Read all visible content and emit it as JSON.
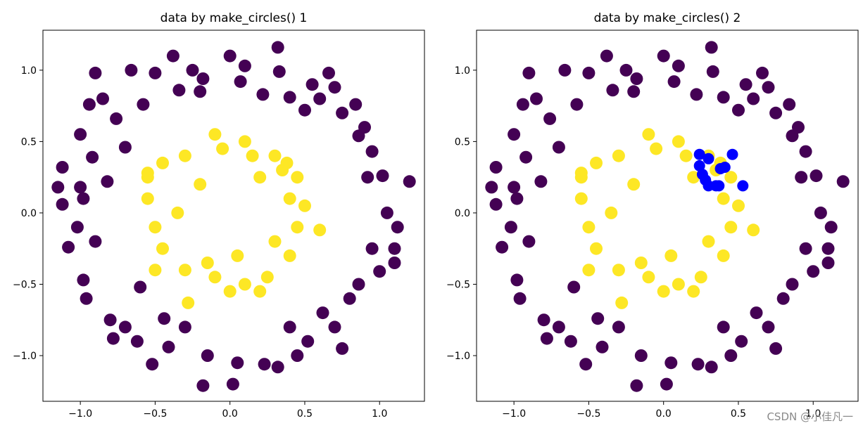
{
  "watermark": "CSDN @小佳凡一",
  "colors": {
    "outer": "#440154",
    "inner": "#fde725",
    "highlight": "#0000ff"
  },
  "chart_data": [
    {
      "type": "scatter",
      "title": "data by make_circles() 1",
      "xlim": [
        -1.25,
        1.3
      ],
      "ylim": [
        -1.32,
        1.28
      ],
      "xticks": [
        -1.0,
        -0.5,
        0.0,
        0.5,
        1.0
      ],
      "xtick_labels": [
        "−1.0",
        "−0.5",
        "0.0",
        "0.5",
        "1.0"
      ],
      "yticks": [
        -1.0,
        -0.5,
        0.0,
        0.5,
        1.0
      ],
      "ytick_labels": [
        "−1.0",
        "−0.5",
        "0.0",
        "0.5",
        "1.0"
      ],
      "grid": false,
      "series": [
        {
          "color": "#440154",
          "marker": "circle",
          "points": [
            [
              0.32,
              1.16
            ],
            [
              0.0,
              1.1
            ],
            [
              -0.38,
              1.1
            ],
            [
              0.33,
              0.99
            ],
            [
              0.66,
              0.98
            ],
            [
              -0.66,
              1.0
            ],
            [
              -0.9,
              0.98
            ],
            [
              -0.94,
              0.76
            ],
            [
              -1.0,
              0.55
            ],
            [
              -1.12,
              0.32
            ],
            [
              -1.15,
              0.18
            ],
            [
              -1.0,
              0.18
            ],
            [
              -1.12,
              0.06
            ],
            [
              -1.02,
              -0.1
            ],
            [
              -1.08,
              -0.24
            ],
            [
              -0.98,
              -0.47
            ],
            [
              -0.96,
              -0.6
            ],
            [
              -0.8,
              -0.75
            ],
            [
              -0.78,
              -0.88
            ],
            [
              -0.62,
              -0.9
            ],
            [
              -0.52,
              -1.06
            ],
            [
              -0.41,
              -0.94
            ],
            [
              -0.18,
              -1.21
            ],
            [
              0.02,
              -1.2
            ],
            [
              0.23,
              -1.06
            ],
            [
              0.32,
              -1.08
            ],
            [
              0.52,
              -0.9
            ],
            [
              0.7,
              -0.8
            ],
            [
              0.8,
              -0.6
            ],
            [
              0.86,
              -0.5
            ],
            [
              1.0,
              -0.41
            ],
            [
              1.1,
              -0.25
            ],
            [
              1.12,
              -0.1
            ],
            [
              1.2,
              0.22
            ],
            [
              1.02,
              0.26
            ],
            [
              0.95,
              0.43
            ],
            [
              0.86,
              0.54
            ],
            [
              0.84,
              0.76
            ],
            [
              0.7,
              0.88
            ],
            [
              0.5,
              0.72
            ],
            [
              0.4,
              0.81
            ],
            [
              0.22,
              0.83
            ],
            [
              0.07,
              0.92
            ],
            [
              -0.18,
              0.94
            ],
            [
              -0.34,
              0.86
            ],
            [
              -0.58,
              0.76
            ],
            [
              -0.76,
              0.66
            ],
            [
              -0.7,
              0.46
            ],
            [
              -0.92,
              0.39
            ],
            [
              -0.82,
              0.22
            ],
            [
              -0.6,
              -0.52
            ],
            [
              -0.44,
              -0.74
            ],
            [
              -0.3,
              -0.8
            ],
            [
              0.4,
              -0.8
            ],
            [
              0.62,
              -0.7
            ],
            [
              0.9,
              0.6
            ],
            [
              -0.5,
              0.98
            ],
            [
              -0.25,
              1.0
            ],
            [
              0.1,
              1.03
            ],
            [
              0.55,
              0.9
            ],
            [
              0.75,
              0.7
            ],
            [
              0.92,
              0.25
            ],
            [
              1.05,
              0.0
            ],
            [
              0.95,
              -0.25
            ],
            [
              0.75,
              -0.95
            ],
            [
              0.05,
              -1.05
            ],
            [
              -0.15,
              -1.0
            ],
            [
              -0.7,
              -0.8
            ],
            [
              -0.9,
              -0.2
            ],
            [
              -0.98,
              0.1
            ],
            [
              -0.85,
              0.8
            ],
            [
              -0.2,
              0.85
            ],
            [
              0.6,
              0.8
            ],
            [
              1.1,
              -0.35
            ],
            [
              0.45,
              -1.0
            ]
          ]
        },
        {
          "color": "#fde725",
          "marker": "circle",
          "points": [
            [
              -0.1,
              0.55
            ],
            [
              0.1,
              0.5
            ],
            [
              0.3,
              0.4
            ],
            [
              -0.3,
              0.4
            ],
            [
              -0.45,
              0.35
            ],
            [
              -0.55,
              0.25
            ],
            [
              -0.55,
              0.1
            ],
            [
              -0.5,
              -0.1
            ],
            [
              -0.45,
              -0.25
            ],
            [
              -0.3,
              -0.4
            ],
            [
              -0.1,
              -0.45
            ],
            [
              0.1,
              -0.5
            ],
            [
              0.25,
              -0.45
            ],
            [
              0.4,
              -0.3
            ],
            [
              0.45,
              -0.1
            ],
            [
              0.5,
              0.05
            ],
            [
              0.45,
              0.25
            ],
            [
              0.35,
              0.3
            ],
            [
              -0.5,
              -0.4
            ],
            [
              -0.55,
              0.28
            ],
            [
              0.6,
              -0.12
            ],
            [
              -0.28,
              -0.63
            ],
            [
              0.2,
              -0.55
            ],
            [
              0.0,
              -0.55
            ],
            [
              -0.2,
              0.2
            ],
            [
              0.2,
              0.25
            ],
            [
              0.4,
              0.1
            ],
            [
              -0.35,
              0.0
            ],
            [
              0.05,
              -0.3
            ],
            [
              -0.15,
              -0.35
            ],
            [
              0.3,
              -0.2
            ],
            [
              0.15,
              0.4
            ],
            [
              -0.05,
              0.45
            ],
            [
              0.38,
              0.35
            ]
          ]
        }
      ]
    },
    {
      "type": "scatter",
      "title": "data by make_circles() 2",
      "xlim": [
        -1.25,
        1.3
      ],
      "ylim": [
        -1.32,
        1.28
      ],
      "xticks": [
        -1.0,
        -0.5,
        0.0,
        0.5,
        1.0
      ],
      "xtick_labels": [
        "−1.0",
        "−0.5",
        "0.0",
        "0.5",
        "1.0"
      ],
      "yticks": [
        -1.0,
        -0.5,
        0.0,
        0.5,
        1.0
      ],
      "ytick_labels": [
        "−1.0",
        "−0.5",
        "0.0",
        "0.5",
        "1.0"
      ],
      "grid": false,
      "series": [
        {
          "color": "#440154",
          "marker": "circle",
          "points": [
            [
              0.32,
              1.16
            ],
            [
              0.0,
              1.1
            ],
            [
              -0.38,
              1.1
            ],
            [
              0.33,
              0.99
            ],
            [
              0.66,
              0.98
            ],
            [
              -0.66,
              1.0
            ],
            [
              -0.9,
              0.98
            ],
            [
              -0.94,
              0.76
            ],
            [
              -1.0,
              0.55
            ],
            [
              -1.12,
              0.32
            ],
            [
              -1.15,
              0.18
            ],
            [
              -1.0,
              0.18
            ],
            [
              -1.12,
              0.06
            ],
            [
              -1.02,
              -0.1
            ],
            [
              -1.08,
              -0.24
            ],
            [
              -0.98,
              -0.47
            ],
            [
              -0.96,
              -0.6
            ],
            [
              -0.8,
              -0.75
            ],
            [
              -0.78,
              -0.88
            ],
            [
              -0.62,
              -0.9
            ],
            [
              -0.52,
              -1.06
            ],
            [
              -0.41,
              -0.94
            ],
            [
              -0.18,
              -1.21
            ],
            [
              0.02,
              -1.2
            ],
            [
              0.23,
              -1.06
            ],
            [
              0.32,
              -1.08
            ],
            [
              0.52,
              -0.9
            ],
            [
              0.7,
              -0.8
            ],
            [
              0.8,
              -0.6
            ],
            [
              0.86,
              -0.5
            ],
            [
              1.0,
              -0.41
            ],
            [
              1.1,
              -0.25
            ],
            [
              1.12,
              -0.1
            ],
            [
              1.2,
              0.22
            ],
            [
              1.02,
              0.26
            ],
            [
              0.95,
              0.43
            ],
            [
              0.86,
              0.54
            ],
            [
              0.84,
              0.76
            ],
            [
              0.7,
              0.88
            ],
            [
              0.5,
              0.72
            ],
            [
              0.4,
              0.81
            ],
            [
              0.22,
              0.83
            ],
            [
              0.07,
              0.92
            ],
            [
              -0.18,
              0.94
            ],
            [
              -0.34,
              0.86
            ],
            [
              -0.58,
              0.76
            ],
            [
              -0.76,
              0.66
            ],
            [
              -0.7,
              0.46
            ],
            [
              -0.92,
              0.39
            ],
            [
              -0.82,
              0.22
            ],
            [
              -0.6,
              -0.52
            ],
            [
              -0.44,
              -0.74
            ],
            [
              -0.3,
              -0.8
            ],
            [
              0.4,
              -0.8
            ],
            [
              0.62,
              -0.7
            ],
            [
              0.9,
              0.6
            ],
            [
              -0.5,
              0.98
            ],
            [
              -0.25,
              1.0
            ],
            [
              0.1,
              1.03
            ],
            [
              0.55,
              0.9
            ],
            [
              0.75,
              0.7
            ],
            [
              0.92,
              0.25
            ],
            [
              1.05,
              0.0
            ],
            [
              0.95,
              -0.25
            ],
            [
              0.75,
              -0.95
            ],
            [
              0.05,
              -1.05
            ],
            [
              -0.15,
              -1.0
            ],
            [
              -0.7,
              -0.8
            ],
            [
              -0.9,
              -0.2
            ],
            [
              -0.98,
              0.1
            ],
            [
              -0.85,
              0.8
            ],
            [
              -0.2,
              0.85
            ],
            [
              0.6,
              0.8
            ],
            [
              1.1,
              -0.35
            ],
            [
              0.45,
              -1.0
            ]
          ]
        },
        {
          "color": "#fde725",
          "marker": "circle",
          "points": [
            [
              -0.1,
              0.55
            ],
            [
              0.1,
              0.5
            ],
            [
              0.3,
              0.4
            ],
            [
              -0.3,
              0.4
            ],
            [
              -0.45,
              0.35
            ],
            [
              -0.55,
              0.25
            ],
            [
              -0.55,
              0.1
            ],
            [
              -0.5,
              -0.1
            ],
            [
              -0.45,
              -0.25
            ],
            [
              -0.3,
              -0.4
            ],
            [
              -0.1,
              -0.45
            ],
            [
              0.1,
              -0.5
            ],
            [
              0.25,
              -0.45
            ],
            [
              0.4,
              -0.3
            ],
            [
              0.45,
              -0.1
            ],
            [
              0.5,
              0.05
            ],
            [
              0.45,
              0.25
            ],
            [
              0.35,
              0.3
            ],
            [
              -0.5,
              -0.4
            ],
            [
              -0.55,
              0.28
            ],
            [
              0.6,
              -0.12
            ],
            [
              -0.28,
              -0.63
            ],
            [
              0.2,
              -0.55
            ],
            [
              0.0,
              -0.55
            ],
            [
              -0.2,
              0.2
            ],
            [
              0.2,
              0.25
            ],
            [
              0.4,
              0.1
            ],
            [
              -0.35,
              0.0
            ],
            [
              0.05,
              -0.3
            ],
            [
              -0.15,
              -0.35
            ],
            [
              0.3,
              -0.2
            ],
            [
              0.15,
              0.4
            ],
            [
              -0.05,
              0.45
            ],
            [
              0.38,
              0.35
            ]
          ]
        },
        {
          "color": "#0000ff",
          "marker": "circle",
          "points": [
            [
              0.24,
              0.41
            ],
            [
              0.3,
              0.38
            ],
            [
              0.46,
              0.41
            ],
            [
              0.24,
              0.33
            ],
            [
              0.41,
              0.32
            ],
            [
              0.38,
              0.31
            ],
            [
              0.26,
              0.27
            ],
            [
              0.28,
              0.23
            ],
            [
              0.3,
              0.19
            ],
            [
              0.35,
              0.19
            ],
            [
              0.37,
              0.19
            ],
            [
              0.53,
              0.19
            ]
          ]
        }
      ]
    }
  ]
}
